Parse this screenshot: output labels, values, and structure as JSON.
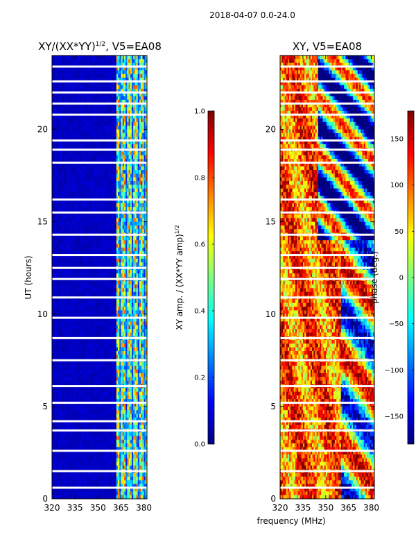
{
  "figure": {
    "suptitle": "2018-04-07 0.0-24.0",
    "shared_xlabel": "frequency (MHz)"
  },
  "colors": {
    "jet_stops": [
      "#00007f",
      "#0000ff",
      "#007fff",
      "#00ffff",
      "#7fff7f",
      "#ffff00",
      "#ff7f00",
      "#ff0000",
      "#7f0000"
    ],
    "gap": "#ffffff"
  },
  "chart_data": [
    {
      "type": "heatmap",
      "title_main": "XY/(XX*YY)",
      "title_sup": "1/2",
      "title_tail": ", V5=EA08",
      "xlabel": "",
      "ylabel": "UT (hours)",
      "xlim": [
        320,
        382
      ],
      "ylim": [
        0,
        24
      ],
      "xticks": [
        320,
        335,
        350,
        365,
        380
      ],
      "yticks": [
        0,
        5,
        10,
        15,
        20
      ],
      "colorbar": {
        "label_main": "XY amp. / (XX*YY amp)",
        "label_sup": "1/2",
        "range": [
          0.0,
          1.0
        ],
        "ticks": [
          "0.0",
          "0.2",
          "0.4",
          "0.6",
          "0.8",
          "1.0"
        ],
        "tick_values": [
          0.0,
          0.2,
          0.4,
          0.6,
          0.8,
          1.0
        ]
      },
      "description_values": {
        "low_band_mhz": [
          320,
          362
        ],
        "low_band_value": 0.05,
        "high_band_mhz": [
          362,
          382
        ],
        "high_band_value_range": [
          0.2,
          0.8
        ]
      },
      "gap_hours": [
        0.6,
        1.5,
        2.6,
        3.7,
        4.2,
        5.2,
        6.1,
        7.5,
        8.7,
        9.8,
        10.9,
        11.9,
        12.5,
        13.2,
        14.3,
        15.5,
        16.2,
        18.2,
        18.9,
        19.4,
        20.8,
        21.4,
        22.0,
        22.6,
        23.4
      ]
    },
    {
      "type": "heatmap",
      "title": "XY, V5=EA08",
      "xlabel": "",
      "ylabel": "",
      "xlim": [
        320,
        382
      ],
      "ylim": [
        0,
        24
      ],
      "xticks": [
        320,
        335,
        350,
        365,
        380
      ],
      "yticks": [
        0,
        5,
        10,
        15,
        20
      ],
      "colorbar": {
        "label": "phase (deg.)",
        "range": [
          -180,
          180
        ],
        "ticks": [
          "−150",
          "−100",
          "−50",
          "0",
          "50",
          "100",
          "150"
        ],
        "tick_values": [
          -150,
          -100,
          -50,
          0,
          50,
          100,
          150
        ]
      },
      "gap_hours": [
        0.6,
        1.5,
        2.6,
        3.7,
        4.2,
        5.2,
        6.1,
        7.5,
        8.7,
        9.8,
        10.9,
        11.9,
        12.5,
        13.2,
        14.3,
        15.5,
        16.2,
        18.2,
        18.9,
        19.4,
        20.8,
        21.4,
        22.0,
        22.6,
        23.4
      ]
    }
  ]
}
